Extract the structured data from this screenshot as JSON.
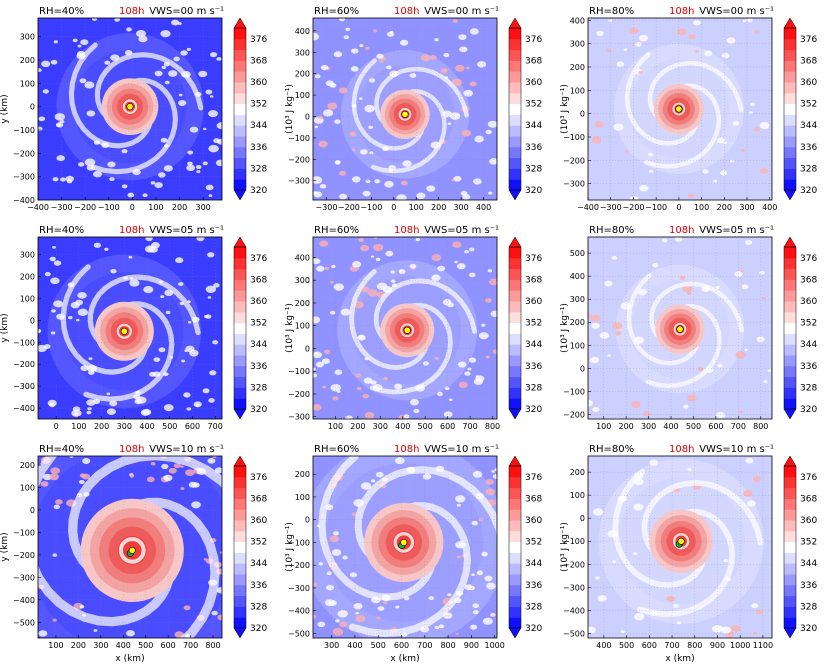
{
  "figure": {
    "colorbar": {
      "label": "(10³ J kg⁻¹)",
      "ticks": [
        320,
        328,
        336,
        344,
        352,
        360,
        368,
        376
      ],
      "range": [
        320,
        380
      ],
      "colors": {
        "low": "#1010ff",
        "mid": "#ffffff",
        "high": "#ff1010"
      }
    },
    "x_label": "x (km)",
    "y_label": "y (km)",
    "marker_colors": {
      "center": "#ffff00",
      "alt": "#22aa22"
    }
  },
  "chart_data": [
    {
      "type": "heatmap",
      "title_left": "RH=40%",
      "title_time": "108h",
      "title_right": "VWS=00 m s⁻¹",
      "xlim": [
        -400,
        380
      ],
      "ylim": [
        -400,
        380
      ],
      "xticks": [
        "−400",
        "−300",
        "−200",
        "−100",
        "0",
        "100",
        "200",
        "300"
      ],
      "xtick_vals": [
        -400,
        -300,
        -200,
        -100,
        0,
        100,
        200,
        300
      ],
      "yticks": [
        "−400",
        "−300",
        "−200",
        "−100",
        "0",
        "100",
        "200",
        "300"
      ],
      "ytick_vals": [
        -400,
        -300,
        -200,
        -100,
        0,
        100,
        200,
        300
      ],
      "center": [
        -10,
        0
      ],
      "core_radius": 120,
      "background": "dark",
      "green_marker": false
    },
    {
      "type": "heatmap",
      "title_left": "RH=60%",
      "title_time": "108h",
      "title_right": "VWS=00 m s⁻¹",
      "xlim": [
        -360,
        460
      ],
      "ylim": [
        -390,
        460
      ],
      "xticks": [
        "−300",
        "−200",
        "−100",
        "0",
        "100",
        "200",
        "300",
        "400"
      ],
      "xtick_vals": [
        -300,
        -200,
        -100,
        0,
        100,
        200,
        300,
        400
      ],
      "yticks": [
        "−300",
        "−200",
        "−100",
        "0",
        "100",
        "200",
        "300",
        "400"
      ],
      "ytick_vals": [
        -300,
        -200,
        -100,
        0,
        100,
        200,
        300,
        400
      ],
      "center": [
        50,
        10
      ],
      "core_radius": 110,
      "background": "medium",
      "green_marker": false
    },
    {
      "type": "heatmap",
      "title_left": "RH=80%",
      "title_time": "108h",
      "title_right": "VWS=00 m s⁻¹",
      "xlim": [
        -400,
        410
      ],
      "ylim": [
        -370,
        410
      ],
      "xticks": [
        "−400",
        "−300",
        "−200",
        "−100",
        "0",
        "100",
        "200",
        "300",
        "400"
      ],
      "xtick_vals": [
        -400,
        -300,
        -200,
        -100,
        0,
        100,
        200,
        300,
        400
      ],
      "yticks": [
        "−300",
        "−200",
        "−100",
        "0",
        "100",
        "200",
        "300",
        "400"
      ],
      "ytick_vals": [
        -300,
        -200,
        -100,
        0,
        100,
        200,
        300,
        400
      ],
      "center": [
        0,
        20
      ],
      "core_radius": 110,
      "background": "light",
      "green_marker": false
    },
    {
      "type": "heatmap",
      "title_left": "RH=40%",
      "title_time": "108h",
      "title_right": "VWS=05 m s⁻¹",
      "xlim": [
        -80,
        730
      ],
      "ylim": [
        -450,
        380
      ],
      "xticks": [
        "0",
        "100",
        "200",
        "300",
        "400",
        "500",
        "600",
        "700"
      ],
      "xtick_vals": [
        0,
        100,
        200,
        300,
        400,
        500,
        600,
        700
      ],
      "yticks": [
        "−400",
        "−300",
        "−200",
        "−100",
        "0",
        "100",
        "200",
        "300"
      ],
      "ytick_vals": [
        -400,
        -300,
        -200,
        -100,
        0,
        100,
        200,
        300
      ],
      "center": [
        300,
        -50
      ],
      "core_radius": 130,
      "background": "dark",
      "green_marker": false
    },
    {
      "type": "heatmap",
      "title_left": "RH=60%",
      "title_time": "108h",
      "title_right": "VWS=05 m s⁻¹",
      "xlim": [
        0,
        820
      ],
      "ylim": [
        -310,
        490
      ],
      "xticks": [
        "100",
        "200",
        "300",
        "400",
        "500",
        "600",
        "700",
        "800"
      ],
      "xtick_vals": [
        100,
        200,
        300,
        400,
        500,
        600,
        700,
        800
      ],
      "yticks": [
        "−300",
        "−200",
        "−100",
        "0",
        "100",
        "200",
        "300",
        "400"
      ],
      "ytick_vals": [
        -300,
        -200,
        -100,
        0,
        100,
        200,
        300,
        400
      ],
      "center": [
        420,
        80
      ],
      "core_radius": 120,
      "background": "medium",
      "green_marker": false
    },
    {
      "type": "heatmap",
      "title_left": "RH=80%",
      "title_time": "108h",
      "title_right": "VWS=05 m s⁻¹",
      "xlim": [
        30,
        850
      ],
      "ylim": [
        -220,
        570
      ],
      "xticks": [
        "100",
        "200",
        "300",
        "400",
        "500",
        "600",
        "700",
        "800"
      ],
      "xtick_vals": [
        100,
        200,
        300,
        400,
        500,
        600,
        700,
        800
      ],
      "yticks": [
        "−200",
        "−100",
        "0",
        "100",
        "200",
        "300",
        "400",
        "500"
      ],
      "ytick_vals": [
        -200,
        -100,
        0,
        100,
        200,
        300,
        400,
        500
      ],
      "center": [
        440,
        170
      ],
      "core_radius": 110,
      "background": "light",
      "green_marker": false
    },
    {
      "type": "heatmap",
      "title_left": "RH=40%",
      "title_time": "108h",
      "title_right": "VWS=10 m s⁻¹",
      "xlim": [
        20,
        840
      ],
      "ylim": [
        -570,
        240
      ],
      "xticks": [
        "100",
        "200",
        "300",
        "400",
        "500",
        "600",
        "700",
        "800"
      ],
      "xtick_vals": [
        100,
        200,
        300,
        400,
        500,
        600,
        700,
        800
      ],
      "yticks": [
        "−500",
        "−400",
        "−300",
        "−200",
        "−100",
        "0",
        "100",
        "200"
      ],
      "ytick_vals": [
        -500,
        -400,
        -300,
        -200,
        -100,
        0,
        100,
        200
      ],
      "center": [
        440,
        -180
      ],
      "core_radius": 230,
      "background": "dark",
      "green_marker": true
    },
    {
      "type": "heatmap",
      "title_left": "RH=60%",
      "title_time": "108h",
      "title_right": "VWS=10 m s⁻¹",
      "xlim": [
        220,
        1010
      ],
      "ylim": [
        -520,
        280
      ],
      "xticks": [
        "300",
        "400",
        "500",
        "600",
        "700",
        "800",
        "900",
        "1000"
      ],
      "xtick_vals": [
        300,
        400,
        500,
        600,
        700,
        800,
        900,
        1000
      ],
      "yticks": [
        "−500",
        "−400",
        "−300",
        "−200",
        "−100",
        "0",
        "100",
        "200"
      ],
      "ytick_vals": [
        -500,
        -400,
        -300,
        -200,
        -100,
        0,
        100,
        200
      ],
      "center": [
        610,
        -100
      ],
      "core_radius": 170,
      "background": "medium",
      "green_marker": true
    },
    {
      "type": "heatmap",
      "title_left": "RH=80%",
      "title_time": "108h",
      "title_right": "VWS=10 m s⁻¹",
      "xlim": [
        330,
        1140
      ],
      "ylim": [
        -520,
        270
      ],
      "xticks": [
        "400",
        "500",
        "600",
        "700",
        "800",
        "900",
        "1000",
        "1100"
      ],
      "xtick_vals": [
        400,
        500,
        600,
        700,
        800,
        900,
        1000,
        1100
      ],
      "yticks": [
        "−500",
        "−400",
        "−300",
        "−200",
        "−100",
        "0",
        "100",
        "200"
      ],
      "ytick_vals": [
        -500,
        -400,
        -300,
        -200,
        -100,
        0,
        100,
        200
      ],
      "center": [
        740,
        -100
      ],
      "core_radius": 140,
      "background": "light",
      "green_marker": true
    }
  ]
}
